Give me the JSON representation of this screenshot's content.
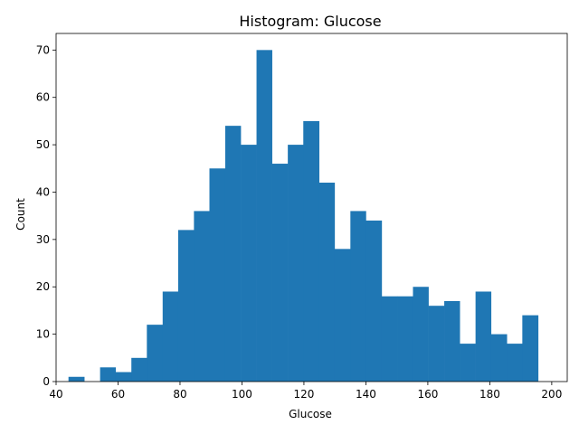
{
  "chart_data": {
    "type": "bar",
    "title": "Histogram: Glucose",
    "xlabel": "Glucose",
    "ylabel": "Count",
    "xlim": [
      40,
      205
    ],
    "ylim": [
      0,
      73.5
    ],
    "xticks": [
      40,
      60,
      80,
      100,
      120,
      140,
      160,
      180,
      200
    ],
    "yticks": [
      0,
      10,
      20,
      30,
      40,
      50,
      60,
      70
    ],
    "grid": false,
    "bar_color": "#1f77b4",
    "bins": [
      {
        "start": 44.0,
        "end": 49.1,
        "count": 1
      },
      {
        "start": 49.1,
        "end": 54.2,
        "count": 0
      },
      {
        "start": 54.2,
        "end": 59.2,
        "count": 3
      },
      {
        "start": 59.2,
        "end": 64.3,
        "count": 2
      },
      {
        "start": 64.3,
        "end": 69.3,
        "count": 5
      },
      {
        "start": 69.3,
        "end": 74.4,
        "count": 12
      },
      {
        "start": 74.4,
        "end": 79.4,
        "count": 19
      },
      {
        "start": 79.4,
        "end": 84.5,
        "count": 32
      },
      {
        "start": 84.5,
        "end": 89.5,
        "count": 36
      },
      {
        "start": 89.5,
        "end": 94.6,
        "count": 45
      },
      {
        "start": 94.6,
        "end": 99.6,
        "count": 54
      },
      {
        "start": 99.6,
        "end": 104.7,
        "count": 50
      },
      {
        "start": 104.7,
        "end": 109.7,
        "count": 70
      },
      {
        "start": 109.7,
        "end": 114.8,
        "count": 46
      },
      {
        "start": 114.8,
        "end": 119.8,
        "count": 50
      },
      {
        "start": 119.8,
        "end": 124.9,
        "count": 55
      },
      {
        "start": 124.9,
        "end": 129.9,
        "count": 42
      },
      {
        "start": 129.9,
        "end": 135.0,
        "count": 28
      },
      {
        "start": 135.0,
        "end": 140.0,
        "count": 36
      },
      {
        "start": 140.0,
        "end": 145.1,
        "count": 34
      },
      {
        "start": 145.1,
        "end": 150.1,
        "count": 18
      },
      {
        "start": 150.1,
        "end": 155.2,
        "count": 18
      },
      {
        "start": 155.2,
        "end": 160.2,
        "count": 20
      },
      {
        "start": 160.2,
        "end": 165.3,
        "count": 16
      },
      {
        "start": 165.3,
        "end": 170.3,
        "count": 17
      },
      {
        "start": 170.3,
        "end": 175.4,
        "count": 8
      },
      {
        "start": 175.4,
        "end": 180.4,
        "count": 19
      },
      {
        "start": 180.4,
        "end": 185.5,
        "count": 10
      },
      {
        "start": 185.5,
        "end": 190.5,
        "count": 8
      },
      {
        "start": 190.5,
        "end": 195.6,
        "count": 14
      }
    ]
  }
}
